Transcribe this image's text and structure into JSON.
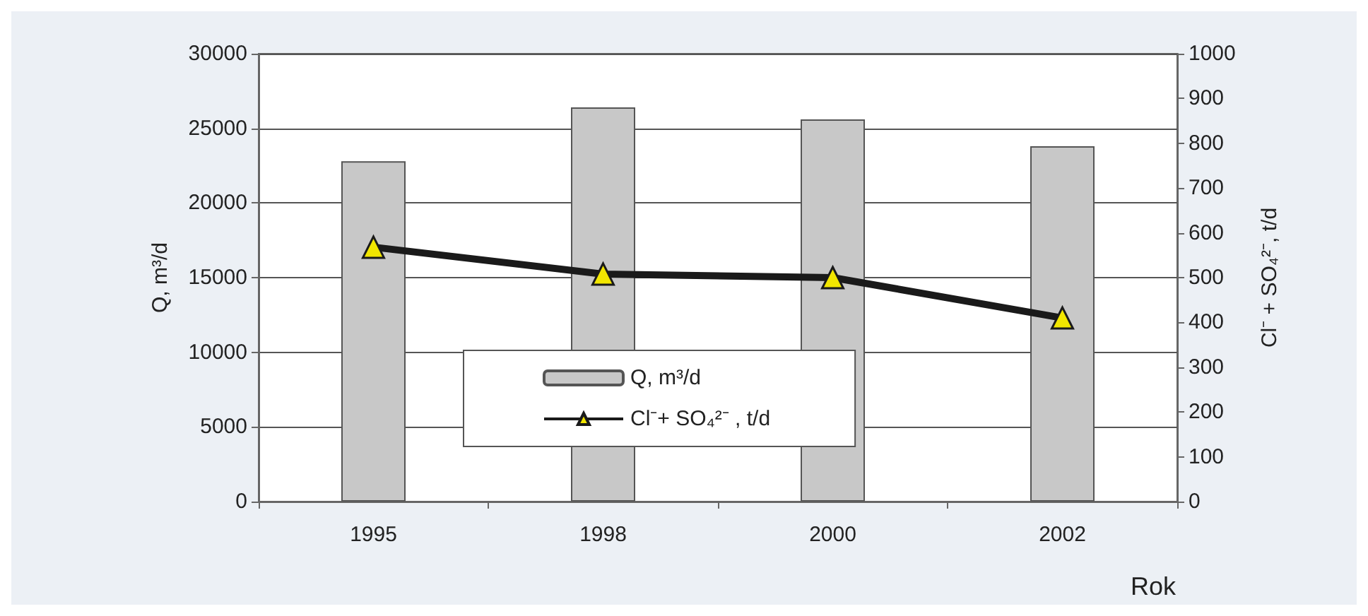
{
  "chart_data": {
    "type": "bar",
    "categories": [
      "1995",
      "1998",
      "2000",
      "2002"
    ],
    "series": [
      {
        "name": "Q, m³/d",
        "color": "#c8c8c8",
        "values": [
          22800,
          26400,
          25600,
          23800
        ]
      },
      {
        "name": "Cl⁻+ SO₄²⁻ , t/d",
        "type": "line",
        "axis": "y2",
        "color": "#1a1a1a",
        "marker": "triangle",
        "values": [
          568,
          508,
          500,
          410
        ]
      }
    ],
    "xlabel": "Rok",
    "ylabel": "Q, m³/d",
    "y2label": "Cl⁻ + SO₄²⁻, t/d",
    "ylim": [
      0,
      30000
    ],
    "yticks": [
      0,
      5000,
      10000,
      15000,
      20000,
      25000,
      30000
    ],
    "y2lim": [
      0,
      1000
    ],
    "y2ticks": [
      0,
      100,
      200,
      300,
      400,
      500,
      600,
      700,
      800,
      900,
      1000
    ],
    "grid": "y",
    "legend": "bottom"
  }
}
